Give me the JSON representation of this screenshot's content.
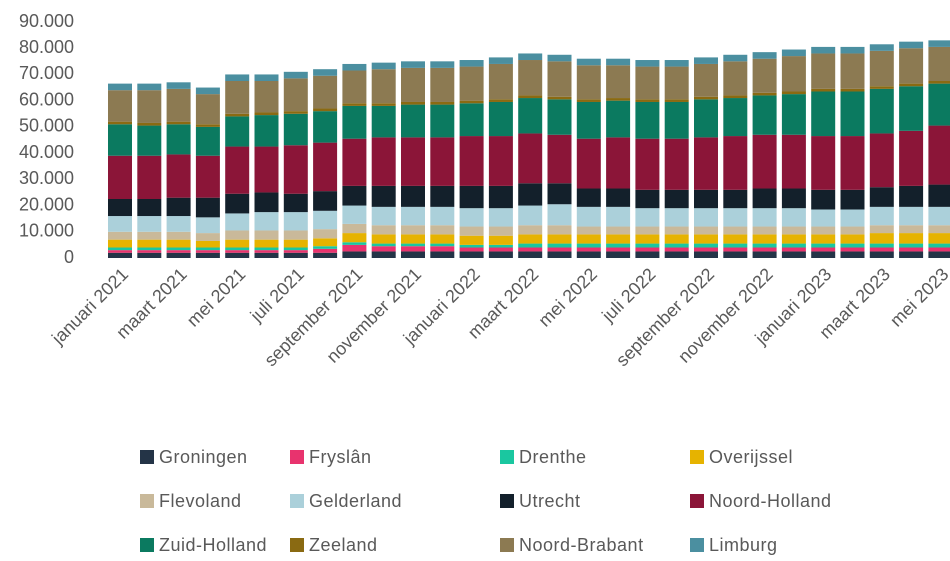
{
  "chart_data": {
    "type": "stacked-bar",
    "categories": [
      "januari 2021",
      null,
      "maart 2021",
      null,
      "mei 2021",
      null,
      "juli 2021",
      null,
      "september 2021",
      null,
      "november 2021",
      null,
      "januari 2022",
      null,
      "maart 2022",
      null,
      "mei 2022",
      null,
      "juli 2022",
      null,
      "september 2022",
      null,
      "november 2022",
      null,
      "januari 2023",
      null,
      "maart 2023",
      null,
      "mei 2023"
    ],
    "ylim": [
      0,
      90000
    ],
    "yticks": [
      {
        "value": 0,
        "label": "0"
      },
      {
        "value": 10000,
        "label": "10.000"
      },
      {
        "value": 20000,
        "label": "20.000"
      },
      {
        "value": 30000,
        "label": "30.000"
      },
      {
        "value": 40000,
        "label": "40.000"
      },
      {
        "value": 50000,
        "label": "50.000"
      },
      {
        "value": 60000,
        "label": "60.000"
      },
      {
        "value": 70000,
        "label": "70.000"
      },
      {
        "value": 80000,
        "label": "80.000"
      },
      {
        "value": 90000,
        "label": "90.000"
      }
    ],
    "grid": false,
    "legend": "bottom",
    "series": [
      {
        "name": "Groningen",
        "color": "#243447",
        "values": [
          2000,
          2000,
          2000,
          2000,
          2000,
          2000,
          2000,
          2000,
          2500,
          2500,
          2500,
          2500,
          2500,
          2500,
          2500,
          2500,
          2500,
          2500,
          2500,
          2500,
          2500,
          2500,
          2500,
          2500,
          2500,
          2500,
          2500,
          2500,
          2500
        ]
      },
      {
        "name": "Fryslân",
        "color": "#e8336e",
        "values": [
          1000,
          1000,
          1000,
          1000,
          1000,
          1000,
          1000,
          1500,
          2500,
          2000,
          2000,
          2000,
          1500,
          1500,
          1500,
          1500,
          1500,
          1500,
          1500,
          1500,
          1500,
          1500,
          1500,
          1500,
          1500,
          1500,
          1500,
          1500,
          1500
        ]
      },
      {
        "name": "Drenthe",
        "color": "#1ac7a0",
        "values": [
          1000,
          1000,
          1000,
          1000,
          1000,
          1000,
          1000,
          1000,
          1000,
          1000,
          1000,
          1000,
          1000,
          1000,
          1500,
          1500,
          1500,
          1500,
          1500,
          1500,
          1500,
          1500,
          1500,
          1500,
          1500,
          1500,
          1500,
          1500,
          1500
        ]
      },
      {
        "name": "Overijssel",
        "color": "#e6b300",
        "values": [
          3000,
          3000,
          3000,
          2500,
          3000,
          3000,
          3000,
          3000,
          3500,
          3500,
          3500,
          3500,
          3500,
          3500,
          3500,
          3500,
          3500,
          3500,
          3500,
          3500,
          3500,
          3500,
          3500,
          3500,
          3500,
          3500,
          4000,
          4000,
          4000
        ]
      },
      {
        "name": "Flevoland",
        "color": "#c9b99a",
        "values": [
          3000,
          3000,
          3000,
          3000,
          3500,
          3500,
          3500,
          3500,
          3500,
          3500,
          3500,
          3500,
          3500,
          3500,
          3500,
          3500,
          3000,
          3000,
          3000,
          3000,
          3000,
          3000,
          3000,
          3000,
          3000,
          3000,
          3000,
          3000,
          3000
        ]
      },
      {
        "name": "Gelderland",
        "color": "#abd0da",
        "values": [
          6000,
          6000,
          6000,
          6000,
          6500,
          7000,
          7000,
          7000,
          7000,
          7000,
          7000,
          7000,
          7000,
          7000,
          7500,
          8000,
          7500,
          7500,
          7000,
          7000,
          7000,
          7000,
          7000,
          7000,
          6500,
          6500,
          7000,
          7000,
          7000
        ]
      },
      {
        "name": "Utrecht",
        "color": "#13202b",
        "values": [
          6500,
          6500,
          7000,
          7500,
          7500,
          7500,
          7000,
          7500,
          7500,
          8000,
          8000,
          8000,
          8500,
          8500,
          8500,
          8000,
          7000,
          7000,
          7000,
          7000,
          7000,
          7000,
          7500,
          7500,
          7500,
          7500,
          7500,
          8000,
          8500
        ]
      },
      {
        "name": "Noord-Holland",
        "color": "#8b1538",
        "values": [
          16500,
          16500,
          16500,
          16000,
          18000,
          17500,
          18500,
          18500,
          18000,
          18500,
          18500,
          18500,
          19000,
          19000,
          19000,
          18500,
          19000,
          19500,
          19500,
          19500,
          20000,
          20500,
          20500,
          20500,
          20500,
          20500,
          20500,
          21000,
          22500
        ]
      },
      {
        "name": "Zuid-Holland",
        "color": "#0b7a60",
        "values": [
          12000,
          11500,
          11500,
          11000,
          11500,
          12000,
          12000,
          12000,
          12500,
          12000,
          12500,
          12500,
          12500,
          13000,
          13500,
          13500,
          14000,
          14000,
          14000,
          14000,
          14500,
          14500,
          15000,
          15500,
          17000,
          17000,
          17000,
          17000,
          16000
        ]
      },
      {
        "name": "Zeeland",
        "color": "#8a6a12",
        "values": [
          1000,
          1000,
          1000,
          1000,
          1000,
          1000,
          1000,
          1000,
          1000,
          1000,
          1000,
          1000,
          1000,
          1000,
          1000,
          1000,
          1000,
          1000,
          1000,
          1000,
          1000,
          1000,
          1000,
          1000,
          1000,
          1000,
          1000,
          1000,
          1000
        ]
      },
      {
        "name": "Noord-Brabant",
        "color": "#8c7a52",
        "values": [
          12000,
          12500,
          12500,
          11500,
          12500,
          12000,
          12500,
          12500,
          12500,
          13000,
          13000,
          13000,
          13000,
          13500,
          13500,
          13500,
          13000,
          12500,
          12500,
          12500,
          12500,
          13000,
          13000,
          13500,
          13500,
          13500,
          13500,
          13500,
          13000
        ]
      },
      {
        "name": "Limburg",
        "color": "#4b8fa0",
        "values": [
          2500,
          2500,
          2500,
          2500,
          2500,
          2500,
          2500,
          2500,
          2500,
          2500,
          2500,
          2500,
          2500,
          2500,
          2500,
          2500,
          2500,
          2500,
          2500,
          2500,
          2500,
          2500,
          2500,
          2500,
          2500,
          2500,
          2500,
          2500,
          2500
        ]
      }
    ]
  }
}
